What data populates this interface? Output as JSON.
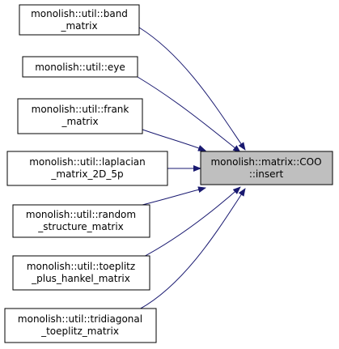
{
  "diagram": {
    "edge_color": "#191970",
    "target": {
      "lines": [
        "monolish::matrix::COO",
        "::insert"
      ],
      "fill": "#bfbfbf"
    },
    "callers": [
      {
        "id": "band",
        "lines": [
          "monolish::util::band",
          "_matrix"
        ]
      },
      {
        "id": "eye",
        "lines": [
          "monolish::util::eye"
        ]
      },
      {
        "id": "frank",
        "lines": [
          "monolish::util::frank",
          "_matrix"
        ]
      },
      {
        "id": "laplacian",
        "lines": [
          "monolish::util::laplacian",
          "_matrix_2D_5p"
        ]
      },
      {
        "id": "random",
        "lines": [
          "monolish::util::random",
          "_structure_matrix"
        ]
      },
      {
        "id": "toeplitz",
        "lines": [
          "monolish::util::toeplitz",
          "_plus_hankel_matrix"
        ]
      },
      {
        "id": "tridiagonal",
        "lines": [
          "monolish::util::tridiagonal",
          "_toeplitz_matrix"
        ]
      }
    ]
  }
}
